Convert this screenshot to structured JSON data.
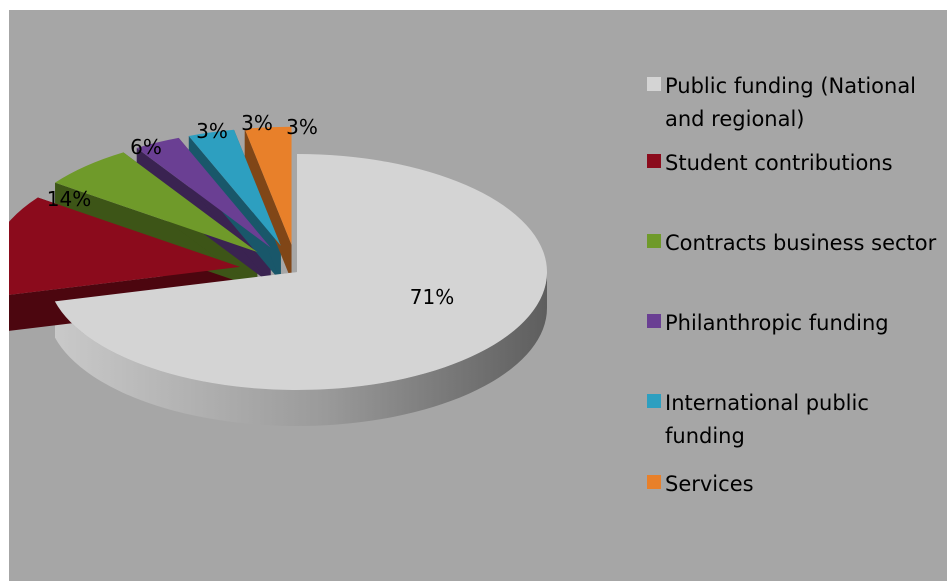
{
  "chart_data": {
    "type": "pie",
    "variant": "3d-exploded",
    "categories": [
      "Public funding (National and regional)",
      "Student contributions",
      "Contracts business sector",
      "Philanthropic funding",
      "International public funding",
      "Services"
    ],
    "values": [
      71,
      14,
      6,
      3,
      3,
      3
    ],
    "value_labels": [
      "71%",
      "14%",
      "6%",
      "3%",
      "3%",
      "3%"
    ],
    "colors": [
      "#d4d4d4",
      "#8b0b1c",
      "#6f9a2a",
      "#6a3f93",
      "#2d9fc0",
      "#e8802a"
    ],
    "legend_position": "right"
  }
}
